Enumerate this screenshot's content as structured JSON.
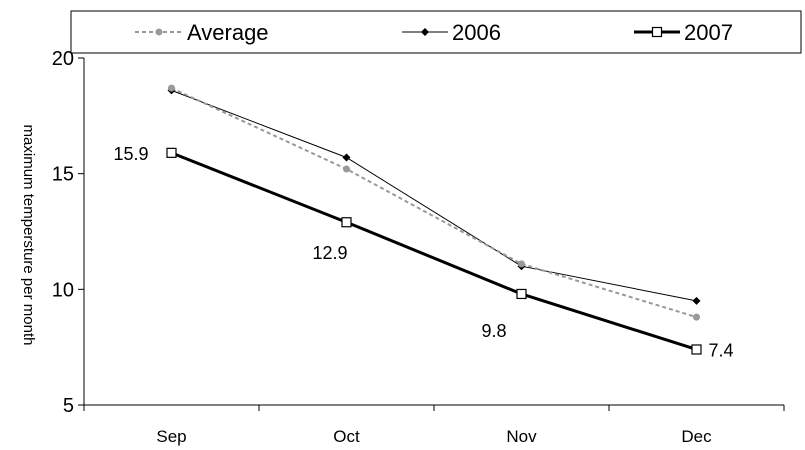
{
  "chart_data": {
    "type": "line",
    "title": "",
    "xlabel": "",
    "ylabel": "maximum tempersture per month",
    "categories": [
      "Sep",
      "Oct",
      "Nov",
      "Dec"
    ],
    "ylim": [
      5,
      20
    ],
    "yticks": [
      5,
      10,
      15,
      20
    ],
    "grid": false,
    "legend_position": "top",
    "series": [
      {
        "name": "Average",
        "values": [
          18.7,
          15.2,
          11.1,
          8.8
        ],
        "color": "#999999",
        "style": "dotted",
        "marker": "circle"
      },
      {
        "name": "2006",
        "values": [
          18.6,
          15.7,
          11.0,
          9.5
        ],
        "color": "#000000",
        "style": "thin",
        "marker": "diamond"
      },
      {
        "name": "2007",
        "values": [
          15.9,
          12.9,
          9.8,
          7.4
        ],
        "color": "#000000",
        "style": "bold",
        "marker": "square",
        "data_labels": [
          "15.9",
          "12.9",
          "9.8",
          "7.4"
        ]
      }
    ]
  }
}
